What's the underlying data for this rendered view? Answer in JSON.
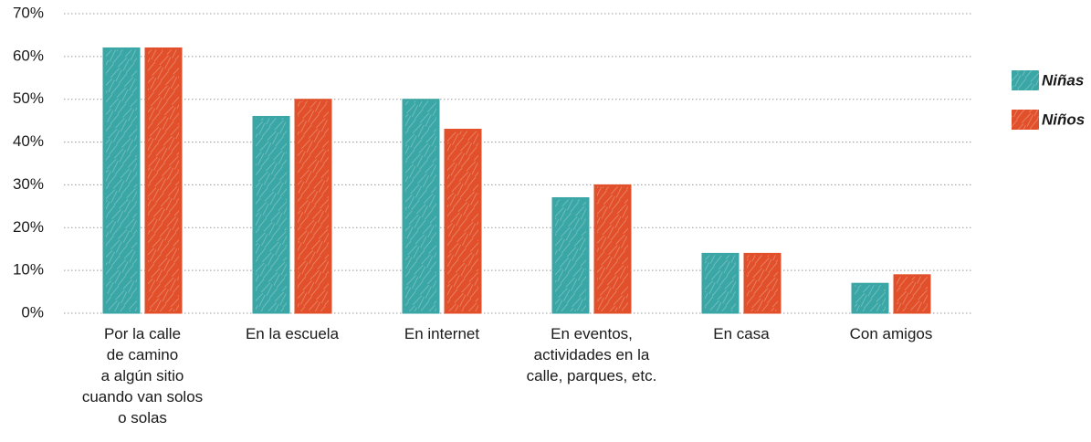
{
  "chart_data": {
    "type": "bar",
    "categories": [
      "Por la calle\nde camino\na algún sitio\ncuando van solos\no solas",
      "En la escuela",
      "En internet",
      "En eventos,\nactividades en la\ncalle, parques, etc.",
      "En casa",
      "Con amigos"
    ],
    "series": [
      {
        "name": "Niñas",
        "color": "#3aa6a5",
        "values": [
          62,
          46,
          50,
          27,
          14,
          7
        ]
      },
      {
        "name": "Niños",
        "color": "#e1502a",
        "values": [
          62,
          50,
          43,
          30,
          14,
          9
        ]
      }
    ],
    "ylim": [
      0,
      70
    ],
    "yticks": [
      {
        "value": 0,
        "label": "0%"
      },
      {
        "value": 10,
        "label": "10%"
      },
      {
        "value": 20,
        "label": "20%"
      },
      {
        "value": 30,
        "label": "30%"
      },
      {
        "value": 40,
        "label": "40%"
      },
      {
        "value": 50,
        "label": "50%"
      },
      {
        "value": 60,
        "label": "60%"
      },
      {
        "value": 70,
        "label": "70%"
      }
    ],
    "grid": true,
    "legend": "right"
  }
}
